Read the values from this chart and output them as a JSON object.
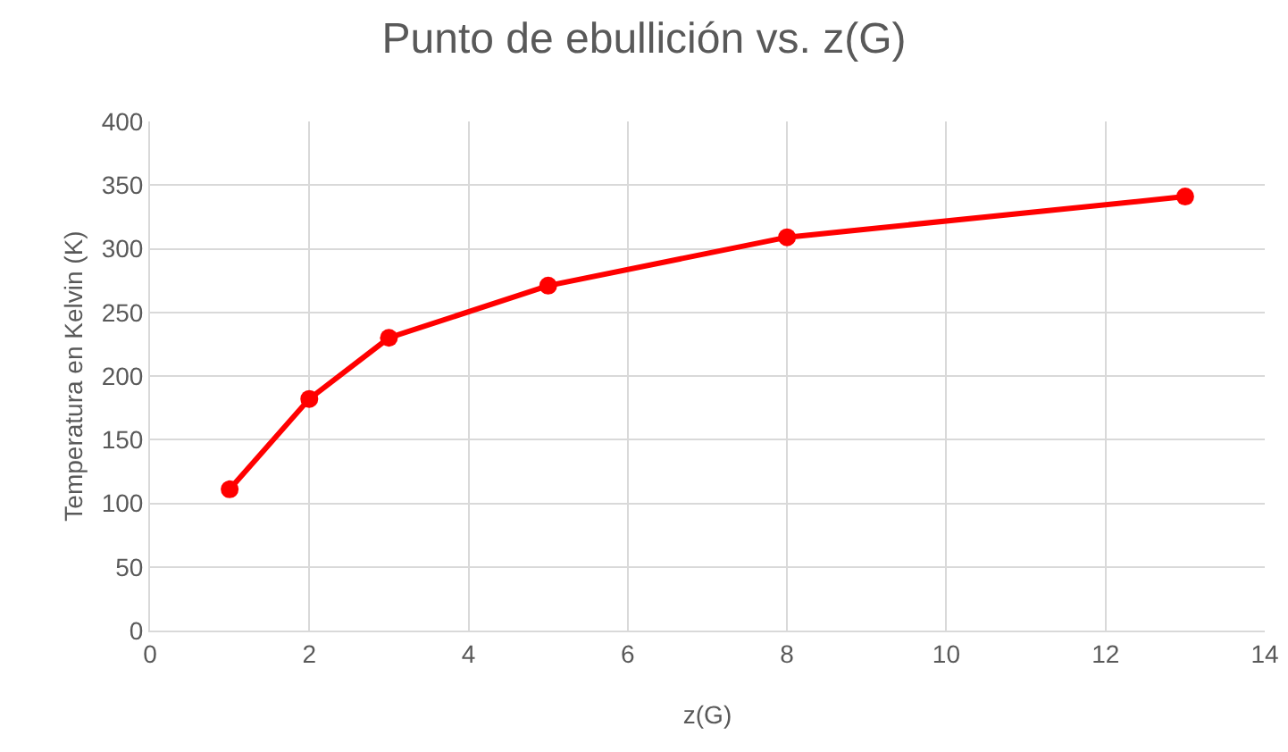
{
  "chart_data": {
    "type": "line",
    "title": "Punto de ebullición vs. z(G)",
    "xlabel": "z(G)",
    "ylabel": "Temperatura en Kelvin (K)",
    "x": [
      1,
      2,
      3,
      5,
      8,
      13
    ],
    "series": [
      {
        "color": "#ff0000",
        "values": [
          111,
          182,
          230,
          271,
          309,
          341
        ]
      }
    ],
    "xlim": [
      0,
      14
    ],
    "xticks": [
      0,
      2,
      4,
      6,
      8,
      10,
      12,
      14
    ],
    "ylim": [
      0,
      400
    ],
    "yticks": [
      0,
      50,
      100,
      150,
      200,
      250,
      300,
      350,
      400
    ],
    "grid": true,
    "marker": "circle",
    "line_style": "solid"
  }
}
